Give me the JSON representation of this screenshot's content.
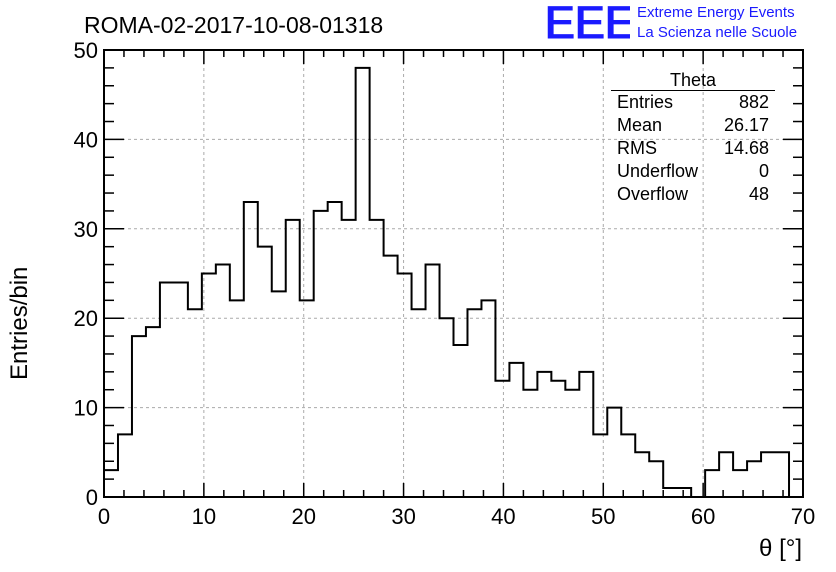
{
  "title": "ROMA-02-2017-10-08-01318",
  "logo": {
    "letters": "EEE",
    "line1": "Extreme Energy Events",
    "line2": "La Scienza nelle Scuole",
    "color": "#1a1aff"
  },
  "chart_data": {
    "type": "bar",
    "title": "ROMA-02-2017-10-08-01318",
    "xlabel": "θ [°]",
    "ylabel": "Entries/bin",
    "xlim": [
      0,
      70
    ],
    "ylim": [
      0,
      50
    ],
    "bin_width": 1.4,
    "grid": true,
    "x_ticks": [
      "0",
      "10",
      "20",
      "30",
      "40",
      "50",
      "60",
      "70"
    ],
    "y_ticks": [
      "0",
      "10",
      "20",
      "30",
      "40",
      "50"
    ],
    "values": [
      3,
      7,
      18,
      19,
      24,
      24,
      21,
      25,
      26,
      22,
      33,
      28,
      23,
      31,
      22,
      32,
      33,
      31,
      48,
      31,
      27,
      25,
      21,
      26,
      20,
      17,
      21,
      22,
      13,
      15,
      12,
      14,
      13,
      12,
      14,
      7,
      10,
      7,
      5,
      4,
      1,
      1,
      0,
      3,
      5,
      3,
      4,
      5,
      5,
      0
    ],
    "line_color": "#000000"
  },
  "stats": {
    "name": "Theta",
    "rows": [
      {
        "label": "Entries",
        "value": "882"
      },
      {
        "label": "Mean",
        "value": "26.17"
      },
      {
        "label": "RMS",
        "value": "14.68"
      },
      {
        "label": "Underflow",
        "value": "0"
      },
      {
        "label": "Overflow",
        "value": "48"
      }
    ]
  }
}
